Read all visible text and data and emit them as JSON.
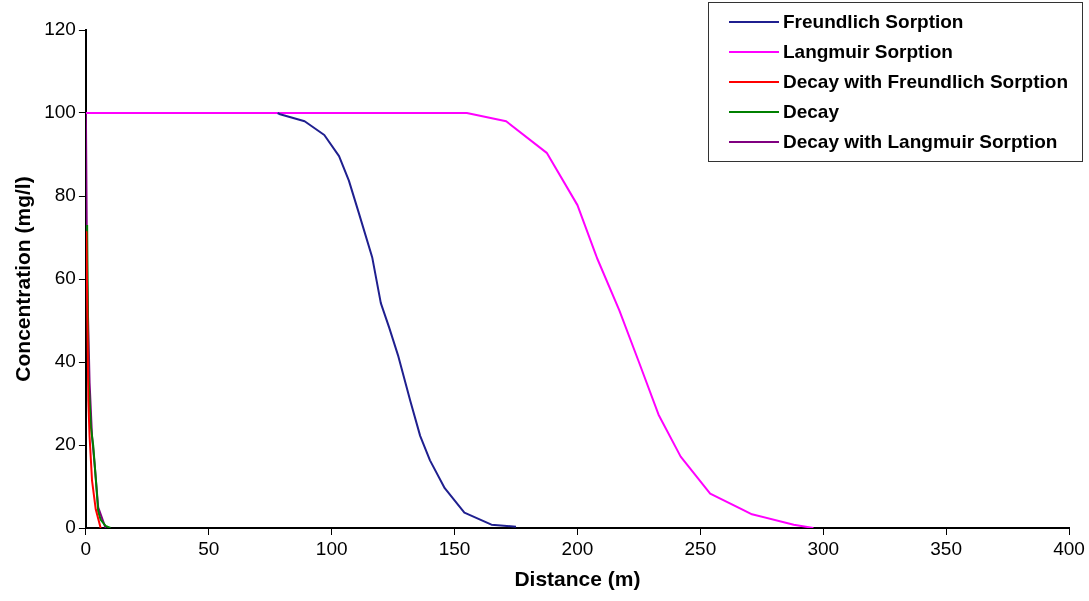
{
  "chart_data": {
    "type": "line",
    "xlabel": "Distance (m)",
    "ylabel": "Concentration (mg/l)",
    "xlim": [
      0,
      400
    ],
    "xticks": [
      0,
      50,
      100,
      150,
      200,
      250,
      300,
      350,
      400
    ],
    "ylim": [
      0,
      120
    ],
    "yticks": [
      0,
      20,
      40,
      60,
      80,
      100,
      120
    ],
    "grid": false,
    "legend": "top right",
    "marker": "none",
    "line_style": "solid",
    "series": [
      {
        "name": "Freundlich Sorption",
        "color": "#1f1f8f",
        "x": [
          78,
          79,
          89,
          97,
          103,
          107,
          111,
          116.5,
          120,
          123.4,
          127,
          132,
          136,
          140,
          146,
          154,
          165,
          175
        ],
        "values": [
          100,
          99.7,
          98,
          94.7,
          89.6,
          83.7,
          76,
          65.2,
          54.2,
          48.3,
          41.6,
          30.6,
          22.2,
          16.3,
          9.6,
          3.7,
          0.8,
          0.3
        ]
      },
      {
        "name": "Langmuir Sorption",
        "color": "#ff00ff",
        "x": [
          0,
          155,
          171,
          187.5,
          200,
          208,
          217,
          225,
          233,
          242,
          254,
          271,
          288,
          296
        ],
        "values": [
          100,
          100,
          98,
          90.4,
          77.8,
          65,
          52.5,
          40,
          27.3,
          17.2,
          8.3,
          3.3,
          0.8,
          0
        ]
      },
      {
        "name": "Decay with Freundlich Sorption",
        "color": "#ff0000",
        "x": [
          0.2,
          1,
          1.5,
          2.5,
          4,
          6
        ],
        "values": [
          71.5,
          30.6,
          22,
          11.4,
          4.5,
          0
        ]
      },
      {
        "name": "Decay",
        "color": "#008000",
        "x": [
          0.5,
          1,
          2,
          3,
          4,
          5,
          6,
          8,
          10
        ],
        "values": [
          73,
          37,
          24.5,
          19.7,
          12,
          4,
          2,
          0.5,
          0
        ]
      },
      {
        "name": "Decay with Langmuir Sorption",
        "color": "#800080",
        "x": [
          0,
          0.5,
          1.5,
          2.5,
          3.6,
          5,
          8
        ],
        "values": [
          100,
          60,
          35,
          22,
          15,
          5,
          0
        ]
      }
    ]
  }
}
